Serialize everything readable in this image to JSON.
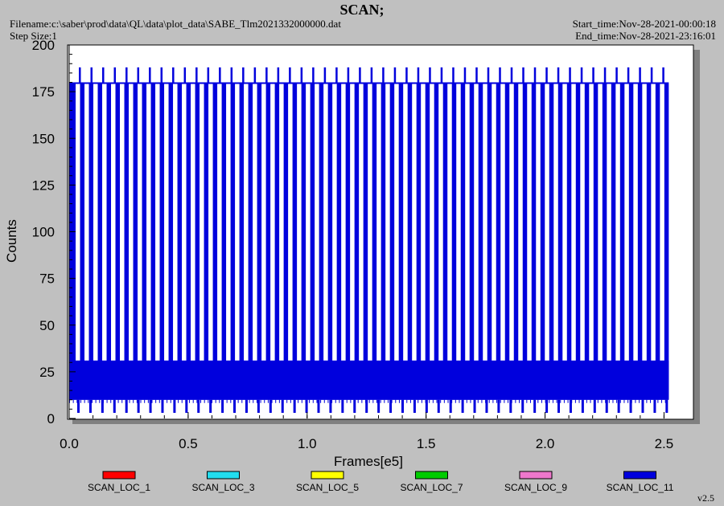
{
  "header": {
    "title": "SCAN;",
    "filename": "Filename:c:\\saber\\prod\\data\\QL\\data\\plot_data\\SABE_Tlm2021332000000.dat",
    "step_size": "Step Size:1",
    "start_time": "Start_time:Nov-28-2021-00:00:18",
    "end_time": "End_time:Nov-28-2021-23:16:01"
  },
  "version": "v2.5",
  "chart_data": {
    "type": "line",
    "title": "SCAN;",
    "xlabel": "Frames[e5]",
    "ylabel": "Counts",
    "xlim": [
      0,
      2.6
    ],
    "ylim": [
      0,
      200
    ],
    "x_ticks": [
      "0.0",
      "0.5",
      "1.0",
      "1.5",
      "2.0",
      "2.5"
    ],
    "y_ticks": [
      "0",
      "25",
      "50",
      "75",
      "100",
      "125",
      "150",
      "175",
      "200"
    ],
    "legend_position": "bottom",
    "data_x_range": [
      0.0,
      2.52
    ],
    "pattern": {
      "band_low": 10,
      "band_high": 31,
      "plateau": 180,
      "spike_max": 188,
      "floor": 3,
      "spike_count": 51
    },
    "series": [
      {
        "name": "SCAN_LOC_1",
        "color": "#ff0000"
      },
      {
        "name": "SCAN_LOC_3",
        "color": "#22ddee"
      },
      {
        "name": "SCAN_LOC_5",
        "color": "#ffff00"
      },
      {
        "name": "SCAN_LOC_7",
        "color": "#00cc00"
      },
      {
        "name": "SCAN_LOC_9",
        "color": "#ee77cc"
      },
      {
        "name": "SCAN_LOC_11",
        "color": "#0000dd"
      }
    ]
  }
}
